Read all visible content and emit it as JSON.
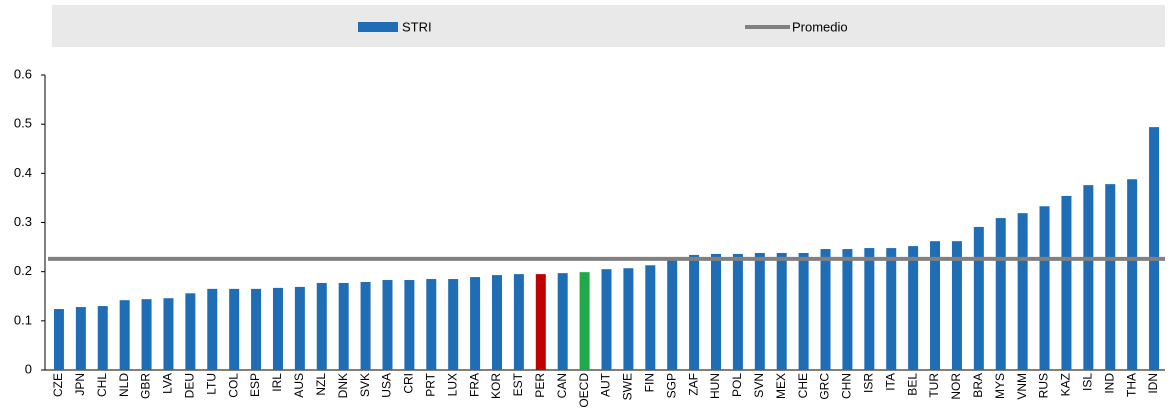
{
  "chart_data": {
    "type": "bar",
    "categories": [
      "CZE",
      "JPN",
      "CHL",
      "NLD",
      "GBR",
      "LVA",
      "DEU",
      "LTU",
      "COL",
      "ESP",
      "IRL",
      "AUS",
      "NZL",
      "DNK",
      "SVK",
      "USA",
      "CRI",
      "PRT",
      "LUX",
      "FRA",
      "KOR",
      "EST",
      "PER",
      "CAN",
      "OECD",
      "AUT",
      "SWE",
      "FIN",
      "SGP",
      "ZAF",
      "HUN",
      "POL",
      "SVN",
      "MEX",
      "CHE",
      "GRC",
      "CHN",
      "ISR",
      "ITA",
      "BEL",
      "TUR",
      "NOR",
      "BRA",
      "MYS",
      "VNM",
      "RUS",
      "KAZ",
      "ISL",
      "IND",
      "THA",
      "IDN"
    ],
    "series": [
      {
        "name": "STRI",
        "color": "#1f6db5",
        "values": [
          0.124,
          0.128,
          0.13,
          0.142,
          0.144,
          0.146,
          0.156,
          0.165,
          0.165,
          0.165,
          0.167,
          0.169,
          0.177,
          0.177,
          0.179,
          0.183,
          0.183,
          0.185,
          0.185,
          0.189,
          0.193,
          0.195,
          0.195,
          0.197,
          0.199,
          0.205,
          0.207,
          0.213,
          0.224,
          0.234,
          0.236,
          0.236,
          0.238,
          0.238,
          0.238,
          0.246,
          0.246,
          0.248,
          0.248,
          0.252,
          0.262,
          0.262,
          0.291,
          0.309,
          0.319,
          0.333,
          0.354,
          0.376,
          0.378,
          0.388,
          0.494
        ],
        "highlight": [
          {
            "category": "PER",
            "color": "#c00000"
          },
          {
            "category": "OECD",
            "color": "#21a84a"
          }
        ]
      },
      {
        "name": "Promedio",
        "type": "hline",
        "color": "#808080",
        "value": 0.226
      }
    ],
    "ylim": [
      0,
      0.6
    ],
    "yticks": [
      0,
      0.1,
      0.2,
      0.3,
      0.4,
      0.5,
      0.6
    ],
    "grid": false
  }
}
